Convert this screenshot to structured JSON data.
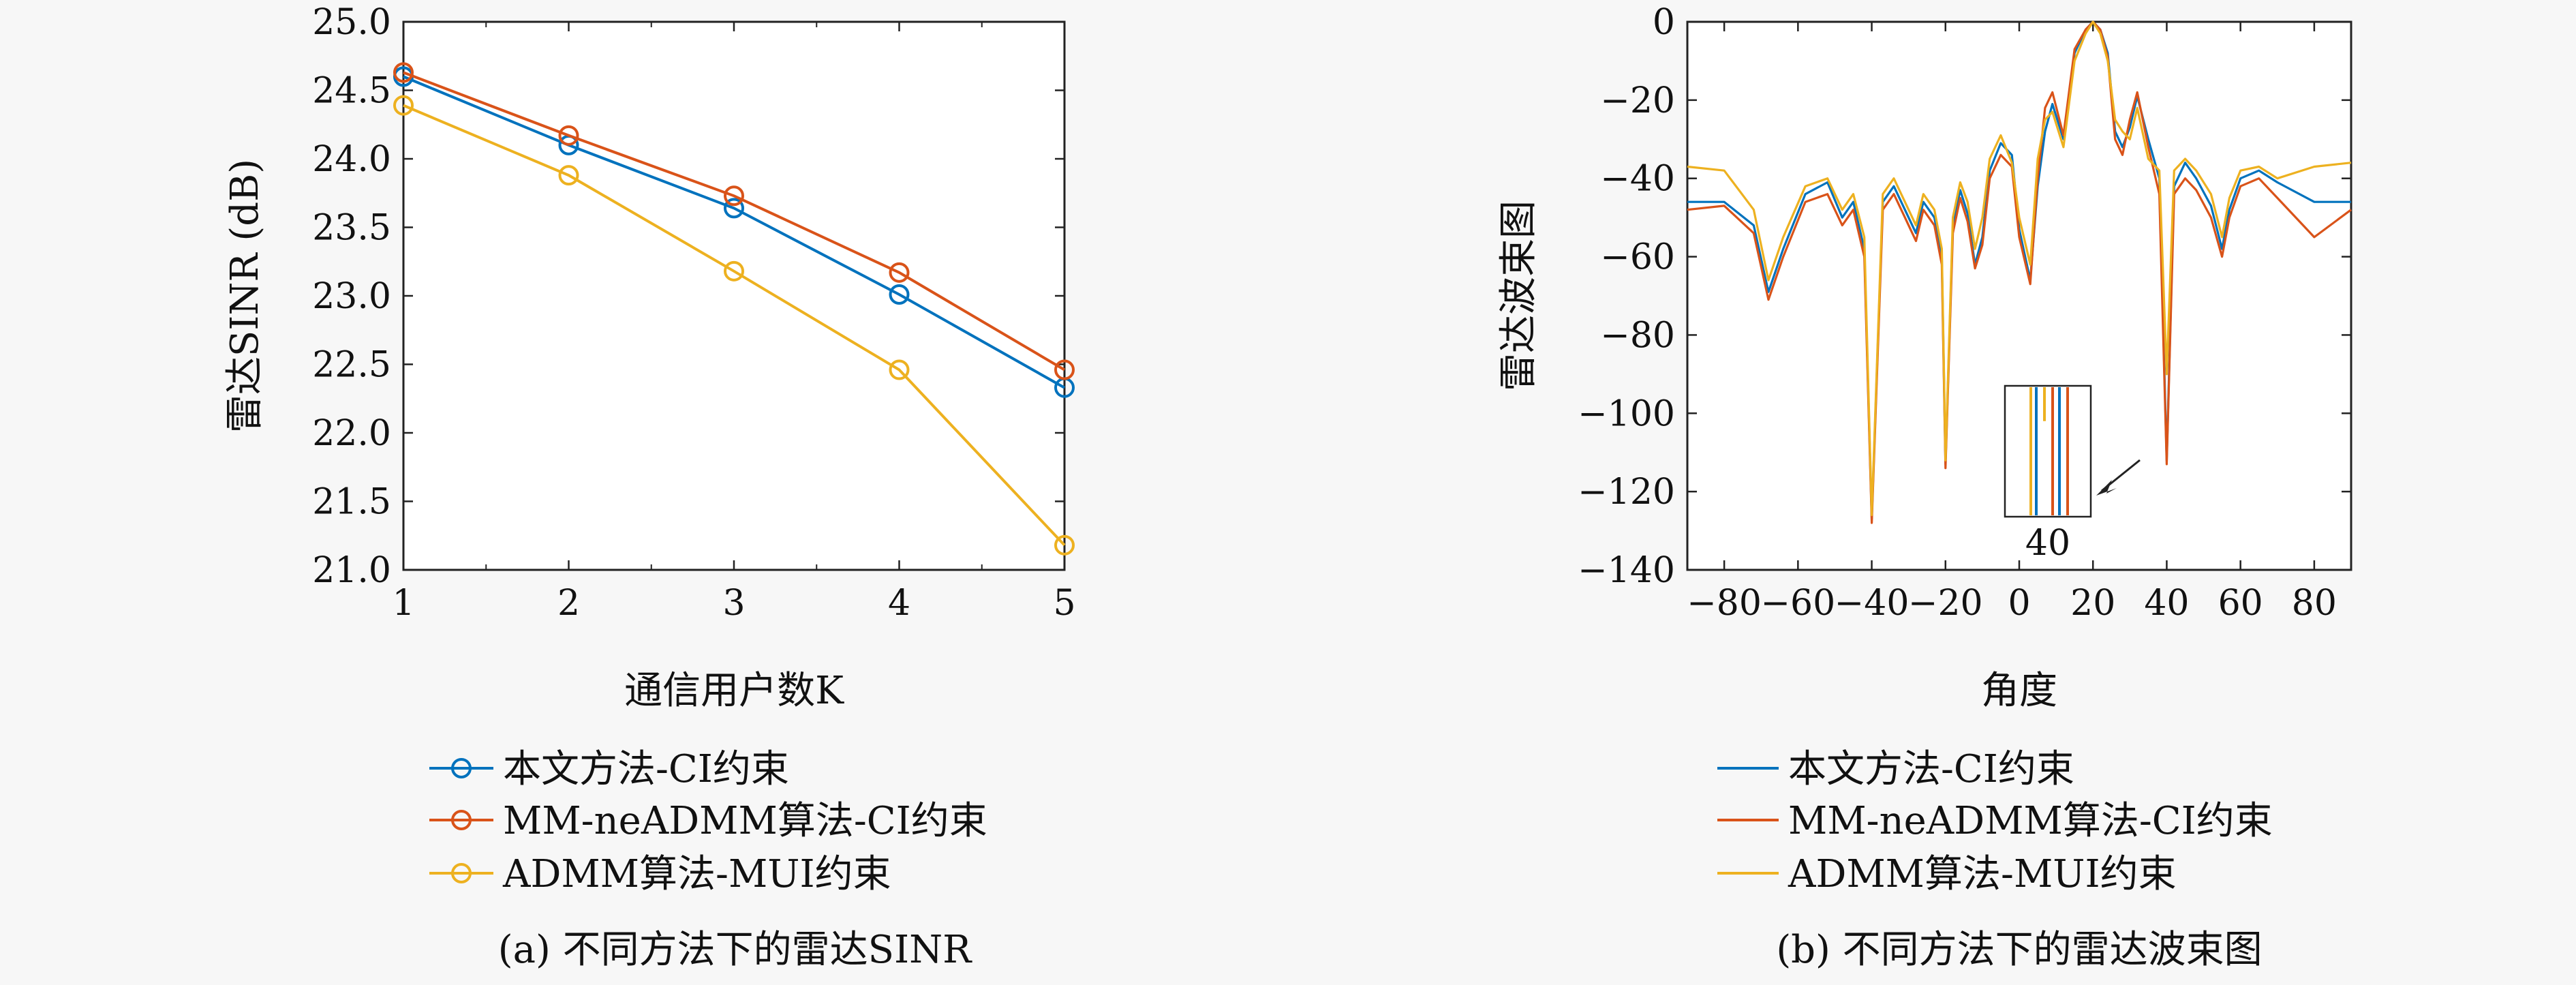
{
  "colors": {
    "blue": "#0072BD",
    "red": "#D95319",
    "yellow": "#EDB120",
    "axis": "#222222",
    "background": "#f7f7f7"
  },
  "panel_a": {
    "caption": "(a) 不同方法下的雷达SINR"
  },
  "panel_b": {
    "caption": "(b) 不同方法下的雷达波束图",
    "inset_label": "40"
  },
  "chart_data": [
    {
      "type": "line",
      "markers": "circle",
      "xlabel": "通信用户数K",
      "ylabel": "雷达SINR (dB)",
      "x": [
        1,
        2,
        3,
        4,
        5
      ],
      "xlim": [
        1,
        5
      ],
      "ylim": [
        21.0,
        25.0
      ],
      "xticks": [
        "1",
        "2",
        "3",
        "4",
        "5"
      ],
      "yticks": [
        "21.0",
        "21.5",
        "22.0",
        "22.5",
        "23.0",
        "23.5",
        "24.0",
        "24.5",
        "25.0"
      ],
      "legend_position": "bottom",
      "series": [
        {
          "name": "本文方法-CI约束",
          "color": "#0072BD",
          "values": [
            24.6,
            24.1,
            23.64,
            23.01,
            22.33
          ]
        },
        {
          "name": "MM-neADMM算法-CI约束",
          "color": "#D95319",
          "values": [
            24.63,
            24.17,
            23.73,
            23.17,
            22.46
          ]
        },
        {
          "name": "ADMM算法-MUI约束",
          "color": "#EDB120",
          "values": [
            24.39,
            23.88,
            23.18,
            22.46,
            21.18
          ]
        }
      ]
    },
    {
      "type": "line",
      "xlabel": "角度",
      "ylabel": "雷达波束图",
      "xlim": [
        -90,
        90
      ],
      "ylim": [
        -140,
        0
      ],
      "xticks": [
        "−80",
        "−60",
        "−40",
        "−20",
        "0",
        "20",
        "40",
        "60",
        "80"
      ],
      "yticks": [
        "−140",
        "−120",
        "−100",
        "−80",
        "−60",
        "−40",
        "−20",
        "0"
      ],
      "legend_position": "bottom",
      "series": [
        {
          "name": "本文方法-CI约束",
          "color": "#0072BD",
          "x": [
            -90,
            -80,
            -72,
            -68,
            -64,
            -58,
            -52,
            -48,
            -45,
            -42,
            -40,
            -37,
            -34,
            -31,
            -28,
            -26,
            -23,
            -21,
            -20,
            -18,
            -16,
            -14,
            -12,
            -10,
            -8,
            -5,
            -2,
            0,
            3,
            5,
            7,
            9,
            12,
            15,
            18,
            20,
            22,
            24,
            26,
            28,
            30,
            32,
            35,
            38,
            40,
            42,
            45,
            48,
            52,
            55,
            57,
            60,
            65,
            70,
            80,
            90
          ],
          "y": [
            -46,
            -46,
            -52,
            -69,
            -58,
            -44,
            -41,
            -50,
            -46,
            -58,
            -127,
            -46,
            -42,
            -48,
            -54,
            -46,
            -50,
            -60,
            -113,
            -52,
            -43,
            -49,
            -62,
            -55,
            -38,
            -31,
            -34,
            -53,
            -66,
            -42,
            -28,
            -21,
            -30,
            -8,
            -2,
            0,
            -2,
            -8,
            -28,
            -32,
            -27,
            -19,
            -30,
            -40,
            -112,
            -42,
            -36,
            -40,
            -47,
            -58,
            -48,
            -40,
            -38,
            -41,
            -46,
            -46
          ]
        },
        {
          "name": "MM-neADMM算法-CI约束",
          "color": "#D95319",
          "x": [
            -90,
            -80,
            -72,
            -68,
            -64,
            -58,
            -52,
            -48,
            -45,
            -42,
            -40,
            -37,
            -34,
            -31,
            -28,
            -26,
            -23,
            -21,
            -20,
            -18,
            -16,
            -14,
            -12,
            -10,
            -8,
            -5,
            -2,
            0,
            3,
            5,
            7,
            9,
            12,
            15,
            18,
            20,
            22,
            24,
            26,
            28,
            30,
            32,
            35,
            38,
            40,
            42,
            45,
            48,
            52,
            55,
            57,
            60,
            65,
            70,
            80,
            90
          ],
          "y": [
            -48,
            -47,
            -54,
            -71,
            -60,
            -46,
            -44,
            -52,
            -48,
            -60,
            -128,
            -48,
            -44,
            -50,
            -56,
            -48,
            -52,
            -62,
            -114,
            -54,
            -45,
            -51,
            -63,
            -57,
            -40,
            -34,
            -37,
            -55,
            -67,
            -40,
            -22,
            -18,
            -29,
            -7,
            -2,
            0,
            -2,
            -9,
            -30,
            -34,
            -25,
            -18,
            -32,
            -44,
            -113,
            -44,
            -40,
            -43,
            -50,
            -60,
            -50,
            -42,
            -40,
            -45,
            -55,
            -48
          ]
        },
        {
          "name": "ADMM算法-MUI约束",
          "color": "#EDB120",
          "x": [
            -90,
            -80,
            -72,
            -68,
            -64,
            -58,
            -52,
            -48,
            -45,
            -42,
            -40,
            -37,
            -34,
            -31,
            -28,
            -26,
            -23,
            -21,
            -20,
            -18,
            -16,
            -14,
            -12,
            -10,
            -8,
            -5,
            -2,
            0,
            3,
            5,
            7,
            9,
            12,
            15,
            18,
            20,
            22,
            24,
            26,
            28,
            30,
            32,
            35,
            38,
            40,
            42,
            45,
            48,
            52,
            55,
            57,
            60,
            65,
            70,
            80,
            90
          ],
          "y": [
            -37,
            -38,
            -48,
            -66,
            -55,
            -42,
            -40,
            -48,
            -44,
            -55,
            -126,
            -44,
            -40,
            -46,
            -52,
            -44,
            -48,
            -58,
            -112,
            -50,
            -41,
            -46,
            -58,
            -50,
            -35,
            -29,
            -36,
            -50,
            -62,
            -35,
            -25,
            -23,
            -32,
            -10,
            -3,
            0,
            -3,
            -10,
            -25,
            -28,
            -30,
            -22,
            -35,
            -38,
            -90,
            -38,
            -35,
            -38,
            -44,
            -55,
            -45,
            -38,
            -37,
            -40,
            -37,
            -36
          ]
        }
      ]
    }
  ]
}
